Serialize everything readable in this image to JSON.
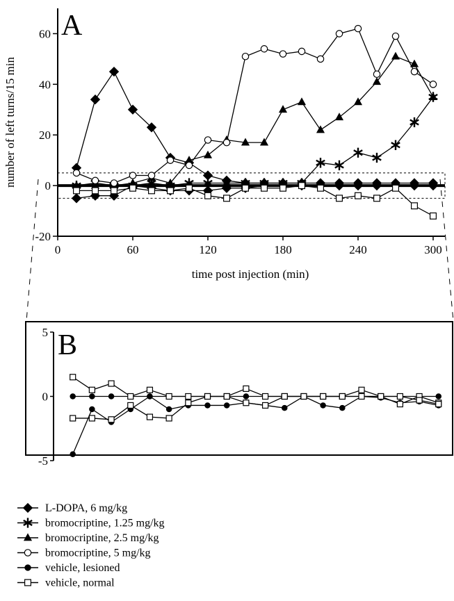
{
  "chart_data": [
    {
      "panel": "A",
      "type": "line",
      "ylabel": "number of left turns/15 min",
      "xlabel": "time post injection (min)",
      "xlim": [
        0,
        305
      ],
      "ylim": [
        -20,
        70
      ],
      "xticks": [
        "0",
        "60",
        "120",
        "180",
        "240",
        "300"
      ],
      "yticks": [
        "-20",
        "0",
        "20",
        "40",
        "60"
      ],
      "x": [
        15,
        30,
        45,
        60,
        75,
        90,
        105,
        120,
        135,
        150,
        165,
        180,
        195,
        210,
        225,
        240,
        255,
        270,
        285,
        300
      ],
      "series": [
        {
          "name": "L-DOPA, 6 mg/kg",
          "marker": "diamond",
          "values": [
            7,
            34,
            45,
            30,
            23,
            11,
            9,
            4,
            2,
            1,
            1,
            1,
            1,
            1,
            1,
            1,
            1,
            1,
            1,
            1
          ]
        },
        {
          "name": "bromocriptine, 1.25 mg/kg",
          "marker": "star",
          "values": [
            0,
            1,
            0,
            0,
            1,
            0,
            1,
            1,
            1,
            1,
            1,
            1,
            1,
            9,
            8,
            13,
            11,
            16,
            25,
            35
          ]
        },
        {
          "name": "bromocriptine, 2.5 mg/kg",
          "marker": "triangle",
          "values": [
            0,
            0,
            0,
            1,
            3,
            1,
            10,
            12,
            18,
            17,
            17,
            30,
            33,
            22,
            27,
            33,
            41,
            51,
            48,
            35
          ]
        },
        {
          "name": "bromocriptine, 5 mg/kg",
          "marker": "circle-open",
          "values": [
            5,
            2,
            1,
            4,
            4,
            10,
            8,
            18,
            17,
            51,
            54,
            52,
            53,
            50,
            60,
            62,
            44,
            59,
            45,
            40
          ]
        },
        {
          "name": "L-DOPA, 6 mg/kg (low)",
          "marker": "diamond",
          "values": [
            -5,
            -4,
            -4,
            0,
            -1,
            -2,
            -2,
            -2,
            -1,
            -1,
            0,
            0,
            0,
            0,
            0,
            0,
            0,
            0,
            0,
            0
          ]
        },
        {
          "name": "vehicle, normal",
          "marker": "square-open",
          "values": [
            -2,
            -2,
            -2,
            -1,
            -2,
            -2,
            -1,
            -4,
            -5,
            -1,
            -1,
            -1,
            0,
            -1,
            -5,
            -4,
            -5,
            -1,
            -8,
            -12
          ]
        }
      ]
    },
    {
      "panel": "B",
      "type": "line",
      "ylim": [
        -5,
        5
      ],
      "yticks": [
        "-5",
        "0",
        "5"
      ],
      "xlim": [
        0,
        305
      ],
      "x": [
        15,
        30,
        45,
        60,
        75,
        90,
        105,
        120,
        135,
        150,
        165,
        180,
        195,
        210,
        225,
        240,
        255,
        270,
        285,
        300
      ],
      "series": [
        {
          "name": "vehicle, lesioned",
          "marker": "circle-filled",
          "values": [
            -4.5,
            -1,
            -2,
            -1,
            0,
            -1,
            -0.7,
            -0.7,
            -0.7,
            -0.5,
            -0.7,
            -0.9,
            0,
            -0.7,
            -0.9,
            0,
            -0.1,
            -0.5,
            -0.4,
            -0.7
          ]
        },
        {
          "name": "vehicle, lesioned (zero)",
          "marker": "circle-filled",
          "values": [
            0,
            0,
            0,
            0,
            0,
            0,
            0,
            0,
            0,
            0,
            0,
            0,
            0,
            0,
            0,
            0,
            0,
            0,
            0,
            0
          ]
        },
        {
          "name": "vehicle, normal",
          "marker": "square-open",
          "values": [
            1.5,
            0.5,
            1,
            0,
            0.5,
            0,
            0,
            0,
            0,
            0.6,
            0,
            0,
            0,
            0,
            0,
            0.5,
            0,
            -0.6,
            0,
            -0.5
          ]
        },
        {
          "name": "vehicle, normal (low)",
          "marker": "square-open",
          "values": [
            -1.7,
            -1.7,
            -1.8,
            -0.7,
            -1.6,
            -1.7,
            -0.5,
            0,
            0,
            -0.5,
            -0.7,
            0,
            0,
            0,
            0,
            0,
            0,
            0,
            -0.3,
            -0.6
          ]
        }
      ]
    }
  ],
  "panel_a_label": "A",
  "panel_b_label": "B",
  "legend": [
    {
      "marker": "diamond",
      "label": "L-DOPA, 6 mg/kg"
    },
    {
      "marker": "star",
      "label": "bromocriptine, 1.25 mg/kg"
    },
    {
      "marker": "triangle",
      "label": "bromocriptine, 2.5 mg/kg"
    },
    {
      "marker": "circle-open",
      "label": "bromocriptine, 5 mg/kg"
    },
    {
      "marker": "circle-filled",
      "label": "vehicle, lesioned"
    },
    {
      "marker": "square-open",
      "label": "vehicle, normal"
    }
  ]
}
